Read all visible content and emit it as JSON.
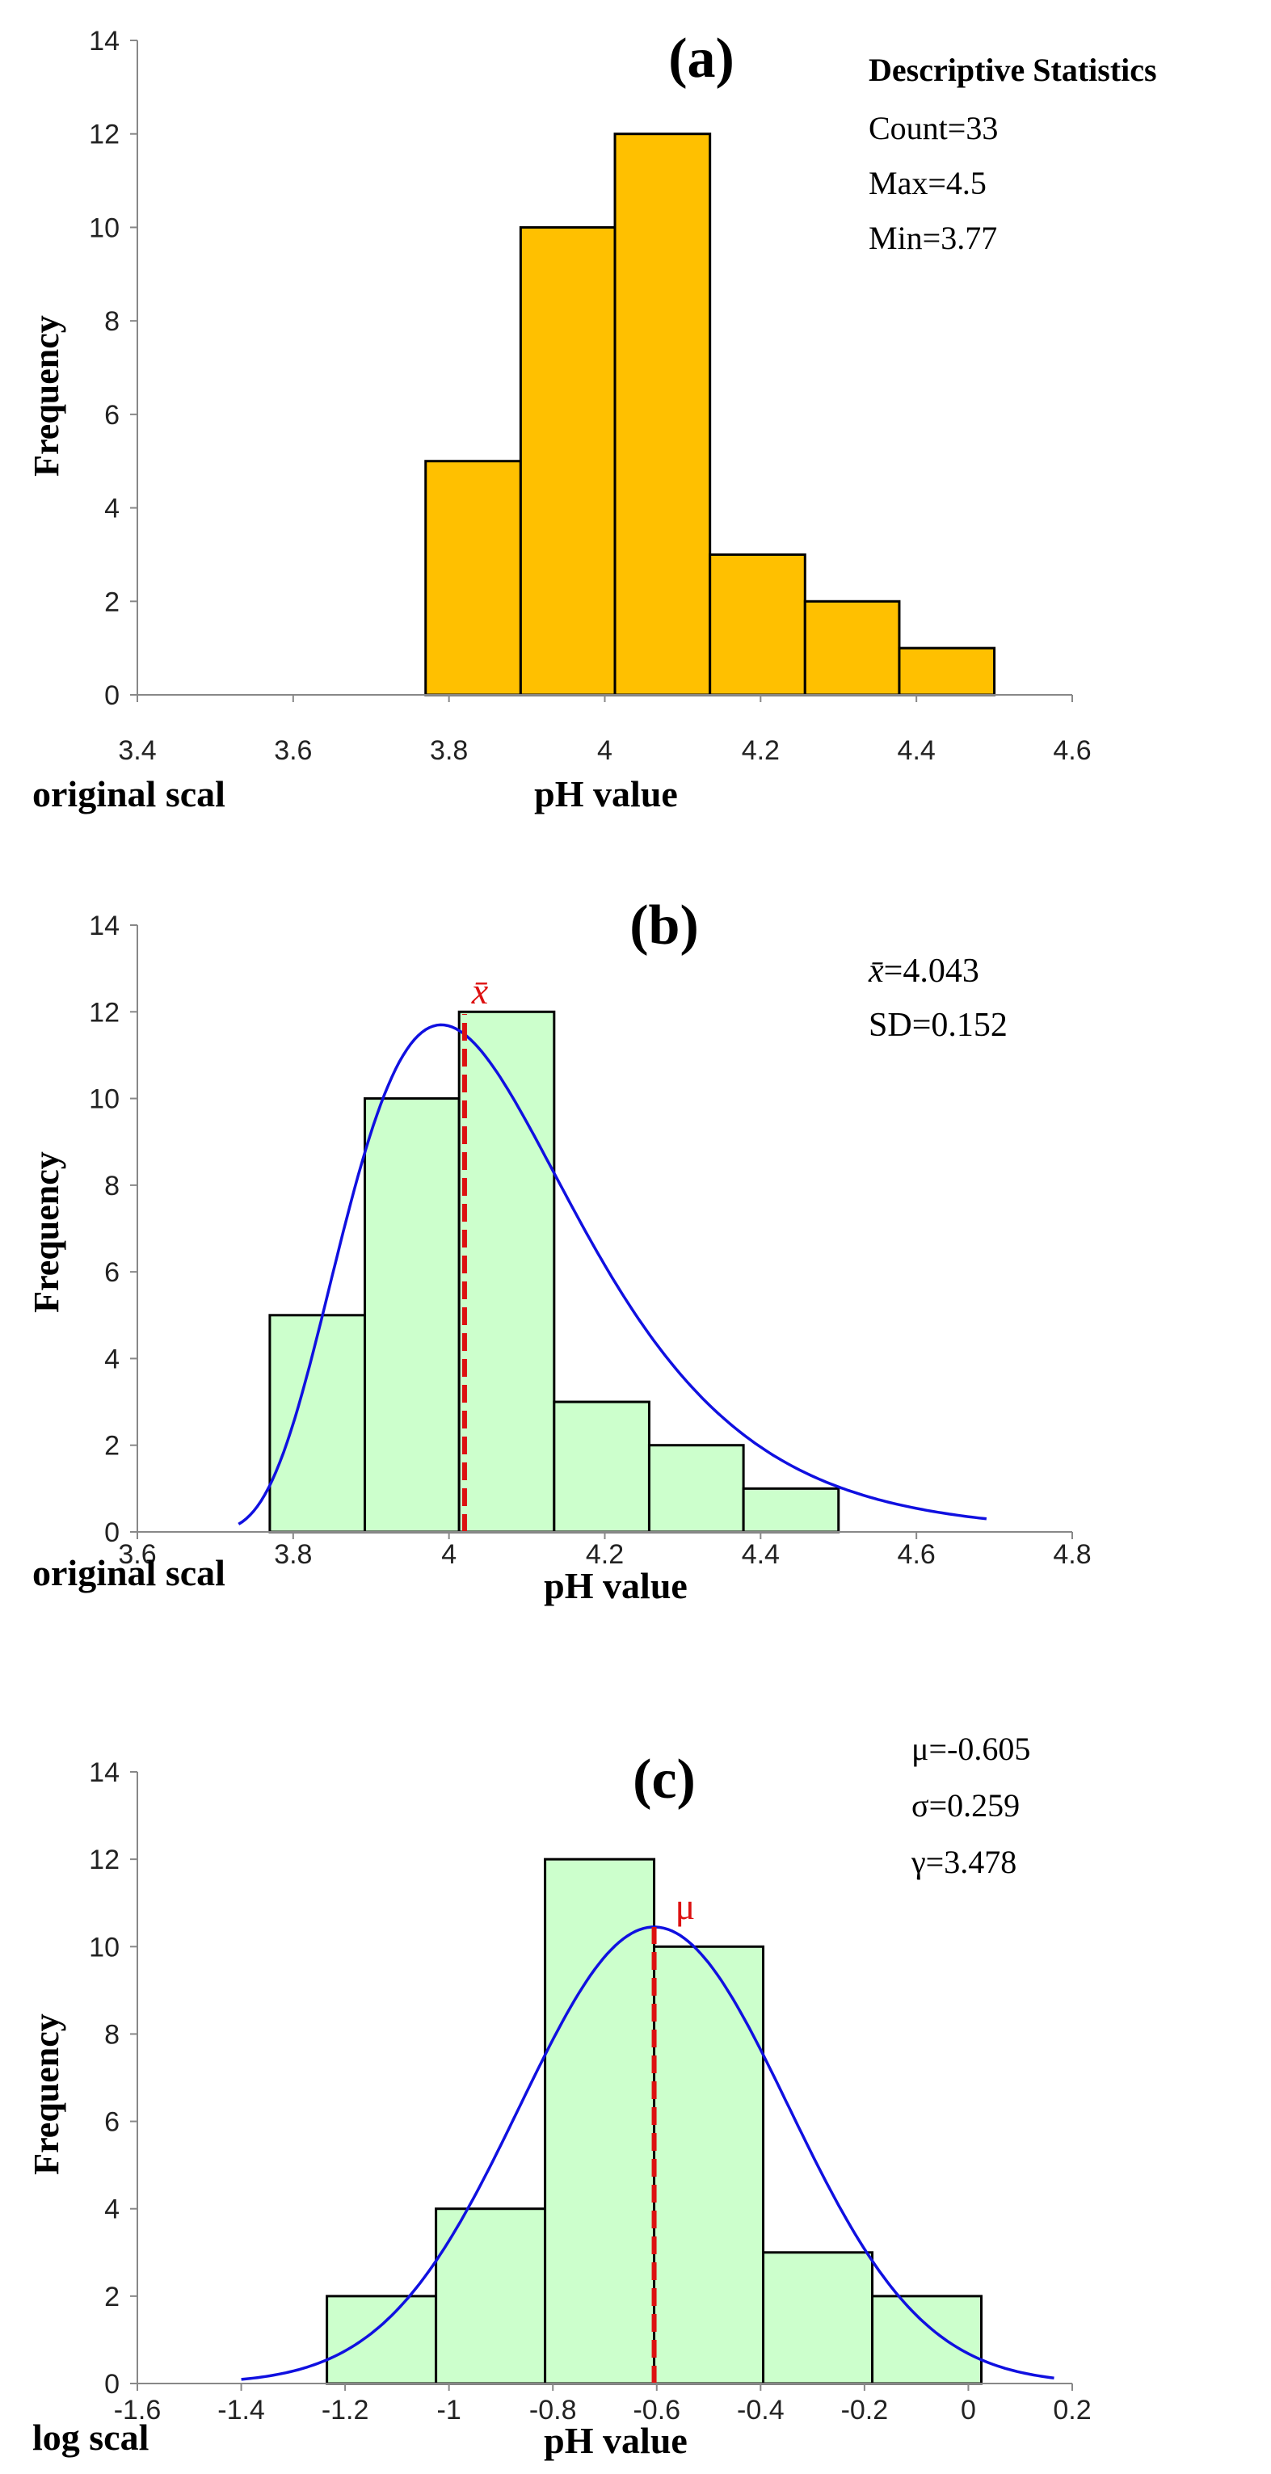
{
  "chart_data": [
    {
      "type": "bar",
      "panel_label": "(a)",
      "style": {
        "bar_fill": "#ffc000",
        "bar_stroke": "#000000"
      },
      "bins": [
        {
          "x0": 3.77,
          "x1": 3.892,
          "count": 5
        },
        {
          "x0": 3.892,
          "x1": 4.013,
          "count": 10
        },
        {
          "x0": 4.013,
          "x1": 4.135,
          "count": 12
        },
        {
          "x0": 4.135,
          "x1": 4.257,
          "count": 3
        },
        {
          "x0": 4.257,
          "x1": 4.378,
          "count": 2
        },
        {
          "x0": 4.378,
          "x1": 4.5,
          "count": 1
        }
      ],
      "xlim": [
        3.4,
        4.6
      ],
      "xticks": [
        "3.4",
        "3.6",
        "3.8",
        "4",
        "4.2",
        "4.4",
        "4.6"
      ],
      "ylim": [
        0,
        14
      ],
      "yticks": [
        "0",
        "2",
        "4",
        "6",
        "8",
        "10",
        "12",
        "14"
      ],
      "xlabel": "pH value",
      "ylabel": "Frequency",
      "scale_label": "original scal",
      "stats_title": "Descriptive Statistics",
      "stats": [
        "Count=33",
        "Max=4.5",
        "Min=3.77"
      ]
    },
    {
      "type": "bar",
      "panel_label": "(b)",
      "style": {
        "bar_fill": "#ccffcc",
        "bar_stroke": "#000000",
        "curve_color": "#1010e0",
        "marker_color": "#dd1111"
      },
      "bins": [
        {
          "x0": 3.77,
          "x1": 3.892,
          "count": 5
        },
        {
          "x0": 3.892,
          "x1": 4.013,
          "count": 10
        },
        {
          "x0": 4.013,
          "x1": 4.135,
          "count": 12
        },
        {
          "x0": 4.135,
          "x1": 4.257,
          "count": 3
        },
        {
          "x0": 4.257,
          "x1": 4.378,
          "count": 2
        },
        {
          "x0": 4.378,
          "x1": 4.5,
          "count": 1
        }
      ],
      "fit_curve": {
        "type": "lognormal",
        "x_range": [
          3.73,
          4.69
        ],
        "mode_x": 3.99,
        "peak_y": 11.7
      },
      "mean_line": {
        "x": 4.02,
        "label": "x̄"
      },
      "xlim": [
        3.6,
        4.8
      ],
      "xticks": [
        "3.6",
        "3.8",
        "4",
        "4.2",
        "4.4",
        "4.6",
        "4.8"
      ],
      "ylim": [
        0,
        14
      ],
      "yticks": [
        "0",
        "2",
        "4",
        "6",
        "8",
        "10",
        "12",
        "14"
      ],
      "xlabel": "pH value",
      "ylabel": "Frequency",
      "scale_label": "original scal",
      "stats": [
        {
          "symbol": "x̄",
          "text": "=4.043"
        },
        {
          "symbol": "",
          "text": "SD=0.152"
        }
      ]
    },
    {
      "type": "bar",
      "panel_label": "(c)",
      "style": {
        "bar_fill": "#ccffcc",
        "bar_stroke": "#000000",
        "curve_color": "#1010e0",
        "marker_color": "#dd1111"
      },
      "bins": [
        {
          "x0": -1.235,
          "x1": -1.025,
          "count": 2
        },
        {
          "x0": -1.025,
          "x1": -0.815,
          "count": 4
        },
        {
          "x0": -0.815,
          "x1": -0.605,
          "count": 12
        },
        {
          "x0": -0.605,
          "x1": -0.395,
          "count": 10
        },
        {
          "x0": -0.395,
          "x1": -0.185,
          "count": 3
        },
        {
          "x0": -0.185,
          "x1": 0.025,
          "count": 2
        }
      ],
      "fit_curve": {
        "type": "normal",
        "x_range": [
          -1.4,
          0.165
        ],
        "mean": -0.605,
        "sd": 0.259,
        "peak_y": 10.45
      },
      "mean_line": {
        "x": -0.605,
        "label": "μ"
      },
      "xlim": [
        -1.6,
        0.2
      ],
      "xticks": [
        "-1.6",
        "-1.4",
        "-1.2",
        "-1",
        "-0.8",
        "-0.6",
        "-0.4",
        "-0.2",
        "0",
        "0.2"
      ],
      "ylim": [
        0,
        14
      ],
      "yticks": [
        "0",
        "2",
        "4",
        "6",
        "8",
        "10",
        "12",
        "14"
      ],
      "xlabel": "pH value",
      "ylabel": "Frequency",
      "scale_label": "log scal",
      "stats": [
        "μ=-0.605",
        "σ=0.259",
        "γ=3.478"
      ]
    }
  ]
}
